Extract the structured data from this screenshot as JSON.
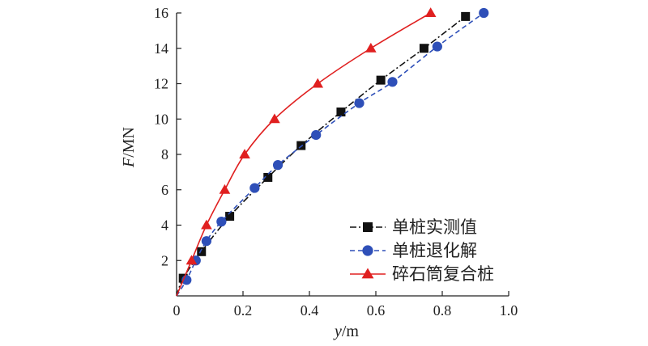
{
  "chart_data": {
    "type": "line",
    "title": "",
    "xlabel": "y/m",
    "xlabel_var": "y",
    "xlabel_unit": "/m",
    "ylabel": "F/MN",
    "ylabel_var": "F",
    "ylabel_unit": "/MN",
    "xlim": [
      0,
      1.0
    ],
    "ylim": [
      0,
      16
    ],
    "xticks": [
      0,
      0.2,
      0.4,
      0.6,
      0.8,
      1.0
    ],
    "xtick_labels": [
      "0",
      "0.2",
      "0.4",
      "0.6",
      "0.8",
      "1.0"
    ],
    "yticks": [
      2,
      4,
      6,
      8,
      10,
      12,
      14,
      16
    ],
    "ytick_labels": [
      "2",
      "4",
      "6",
      "8",
      "10",
      "12",
      "14",
      "16"
    ],
    "grid": false,
    "legend_position": "bottom-right",
    "series": [
      {
        "name": "单桩实测值",
        "color": "#111111",
        "marker": "square",
        "line": "dashdot",
        "x": [
          0.0,
          0.02,
          0.075,
          0.16,
          0.275,
          0.375,
          0.495,
          0.615,
          0.745,
          0.87
        ],
        "y": [
          0.0,
          1.0,
          2.5,
          4.5,
          6.7,
          8.5,
          10.4,
          12.2,
          14.0,
          15.8
        ]
      },
      {
        "name": "单桩退化解",
        "color": "#2e4fb8",
        "marker": "circle",
        "line": "dashed",
        "x": [
          0.0,
          0.03,
          0.058,
          0.09,
          0.135,
          0.235,
          0.305,
          0.42,
          0.55,
          0.65,
          0.785,
          0.925
        ],
        "y": [
          0.0,
          0.9,
          2.0,
          3.1,
          4.2,
          6.1,
          7.4,
          9.1,
          10.9,
          12.1,
          14.1,
          16.0
        ]
      },
      {
        "name": "碎石筒复合桩",
        "color": "#e02020",
        "marker": "triangle",
        "line": "solid",
        "x": [
          0.0,
          0.045,
          0.09,
          0.145,
          0.205,
          0.295,
          0.425,
          0.585,
          0.765
        ],
        "y": [
          0.0,
          2.0,
          4.0,
          6.0,
          8.0,
          10.0,
          12.0,
          14.0,
          16.0
        ]
      }
    ]
  }
}
